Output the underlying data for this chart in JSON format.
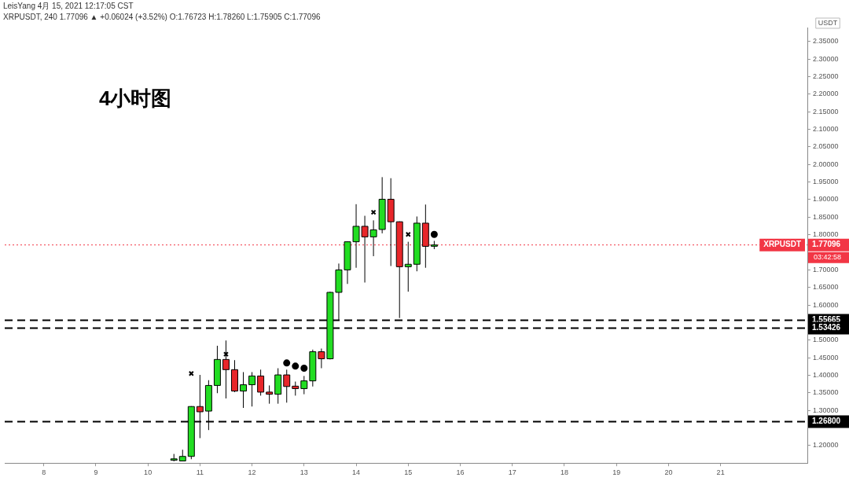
{
  "chart_data": {
    "type": "candlestick",
    "title": "4小时图",
    "subtitle": [
      "LeisYang 4月 15, 2021 12:17:05 CST",
      "XRPUSDT, 240 1.77096 ▲ +0.06024 (+3.52%) O:1.76723 H:1.78260 L:1.75905 C:1.77096"
    ],
    "ylabel": "USDT",
    "x": [
      "2021-04-10T12:00",
      "2021-04-10T16:00",
      "2021-04-10T20:00",
      "2021-04-11T00:00",
      "2021-04-11T04:00",
      "2021-04-11T08:00",
      "2021-04-11T12:00",
      "2021-04-11T16:00",
      "2021-04-11T20:00",
      "2021-04-12T00:00",
      "2021-04-12T04:00",
      "2021-04-12T08:00",
      "2021-04-12T12:00",
      "2021-04-12T16:00",
      "2021-04-12T20:00",
      "2021-04-13T00:00",
      "2021-04-13T04:00",
      "2021-04-13T08:00",
      "2021-04-13T12:00",
      "2021-04-13T16:00",
      "2021-04-13T20:00",
      "2021-04-14T00:00",
      "2021-04-14T04:00",
      "2021-04-14T08:00",
      "2021-04-14T12:00",
      "2021-04-14T16:00",
      "2021-04-14T20:00",
      "2021-04-15T00:00",
      "2021-04-15T04:00",
      "2021-04-15T08:00",
      "2021-04-15T12:00"
    ],
    "ohlc": [
      [
        1.158,
        1.176,
        1.155,
        1.162
      ],
      [
        1.156,
        1.188,
        1.155,
        1.169
      ],
      [
        1.169,
        1.312,
        1.161,
        1.311
      ],
      [
        1.311,
        1.401,
        1.221,
        1.296
      ],
      [
        1.298,
        1.386,
        1.244,
        1.371
      ],
      [
        1.371,
        1.484,
        1.349,
        1.445
      ],
      [
        1.445,
        1.499,
        1.334,
        1.416
      ],
      [
        1.416,
        1.443,
        1.352,
        1.355
      ],
      [
        1.355,
        1.409,
        1.307,
        1.373
      ],
      [
        1.373,
        1.409,
        1.311,
        1.398
      ],
      [
        1.398,
        1.416,
        1.342,
        1.352
      ],
      [
        1.352,
        1.371,
        1.319,
        1.346
      ],
      [
        1.346,
        1.42,
        1.319,
        1.401
      ],
      [
        1.401,
        1.416,
        1.322,
        1.368
      ],
      [
        1.369,
        1.382,
        1.342,
        1.362
      ],
      [
        1.362,
        1.398,
        1.346,
        1.384
      ],
      [
        1.384,
        1.473,
        1.368,
        1.467
      ],
      [
        1.467,
        1.476,
        1.42,
        1.447
      ],
      [
        1.447,
        1.638,
        1.445,
        1.636
      ],
      [
        1.636,
        1.718,
        1.556,
        1.7
      ],
      [
        1.7,
        1.781,
        1.66,
        1.78
      ],
      [
        1.78,
        1.887,
        1.706,
        1.824
      ],
      [
        1.824,
        1.854,
        1.664,
        1.794
      ],
      [
        1.794,
        1.841,
        1.739,
        1.814
      ],
      [
        1.815,
        1.964,
        1.804,
        1.901
      ],
      [
        1.901,
        1.961,
        1.711,
        1.837
      ],
      [
        1.837,
        1.838,
        1.563,
        1.709
      ],
      [
        1.709,
        1.78,
        1.638,
        1.716
      ],
      [
        1.716,
        1.852,
        1.696,
        1.833
      ],
      [
        1.833,
        1.886,
        1.706,
        1.767
      ],
      [
        1.76723,
        1.7826,
        1.75905,
        1.77096
      ]
    ],
    "colors": [
      "#22dd22",
      "#22dd22",
      "#22dd22",
      "#e8262a",
      "#22dd22",
      "#22dd22",
      "#e8262a",
      "#e8262a",
      "#22dd22",
      "#22dd22",
      "#e8262a",
      "#e8262a",
      "#22dd22",
      "#e8262a",
      "#e8262a",
      "#22dd22",
      "#22dd22",
      "#e8262a",
      "#22dd22",
      "#22dd22",
      "#22dd22",
      "#22dd22",
      "#e8262a",
      "#22dd22",
      "#22dd22",
      "#e8262a",
      "#e8262a",
      "#22dd22",
      "#22dd22",
      "#e8262a",
      "#22dd22"
    ],
    "series": [
      {
        "type": "scatter",
        "marker": "cross",
        "color": "#000000",
        "x": [
          "2021-04-10T20:00",
          "2021-04-11T12:00",
          "2021-04-14T08:00",
          "2021-04-15T00:00"
        ],
        "values": [
          1.405,
          1.46,
          1.864,
          1.801
        ]
      },
      {
        "type": "scatter",
        "marker": "circle",
        "color": "#000000",
        "x": [
          "2021-04-12T16:00",
          "2021-04-12T20:00",
          "2021-04-13T00:00",
          "2021-04-15T12:00"
        ],
        "values": [
          1.435,
          1.426,
          1.42,
          1.801
        ]
      }
    ],
    "xlim": [
      "2021-04-07T06:00",
      "2021-04-22T16:00"
    ],
    "xticks": [
      {
        "value": "2021-04-08",
        "label": "8"
      },
      {
        "value": "2021-04-09",
        "label": "9"
      },
      {
        "value": "2021-04-10",
        "label": "10"
      },
      {
        "value": "2021-04-11",
        "label": "11"
      },
      {
        "value": "2021-04-12",
        "label": "12"
      },
      {
        "value": "2021-04-13",
        "label": "13"
      },
      {
        "value": "2021-04-14",
        "label": "14"
      },
      {
        "value": "2021-04-15",
        "label": "15"
      },
      {
        "value": "2021-04-16",
        "label": "16"
      },
      {
        "value": "2021-04-17",
        "label": "17"
      },
      {
        "value": "2021-04-18",
        "label": "18"
      },
      {
        "value": "2021-04-19",
        "label": "19"
      },
      {
        "value": "2021-04-20",
        "label": "20"
      },
      {
        "value": "2021-04-21",
        "label": "21"
      }
    ],
    "ylim": [
      1.15,
      2.39
    ],
    "yticks": [
      {
        "value": 1.2,
        "label": "1.20000"
      },
      {
        "value": 1.3,
        "label": "1.30000"
      },
      {
        "value": 1.35,
        "label": "1.35000"
      },
      {
        "value": 1.4,
        "label": "1.40000"
      },
      {
        "value": 1.45,
        "label": "1.45000"
      },
      {
        "value": 1.5,
        "label": "1.50000"
      },
      {
        "value": 1.6,
        "label": "1.60000"
      },
      {
        "value": 1.65,
        "label": "1.65000"
      },
      {
        "value": 1.7,
        "label": "1.70000"
      },
      {
        "value": 1.8,
        "label": "1.80000"
      },
      {
        "value": 1.85,
        "label": "1.85000"
      },
      {
        "value": 1.9,
        "label": "1.90000"
      },
      {
        "value": 1.95,
        "label": "1.95000"
      },
      {
        "value": 2.0,
        "label": "2.00000"
      },
      {
        "value": 2.05,
        "label": "2.05000"
      },
      {
        "value": 2.1,
        "label": "2.10000"
      },
      {
        "value": 2.15,
        "label": "2.15000"
      },
      {
        "value": 2.2,
        "label": "2.20000"
      },
      {
        "value": 2.25,
        "label": "2.25000"
      },
      {
        "value": 2.3,
        "label": "2.30000"
      },
      {
        "value": 2.35,
        "label": "2.35000"
      }
    ],
    "ref_lines": [
      {
        "axis": "y",
        "value": 1.55665,
        "label": "1.55665",
        "color": "#000000",
        "line_style": "dashed"
      },
      {
        "axis": "y",
        "value": 1.53426,
        "label": "1.53426",
        "color": "#000000",
        "line_style": "dashed"
      },
      {
        "axis": "y",
        "value": 1.268,
        "label": "1.26800",
        "color": "#000000",
        "line_style": "dashed"
      },
      {
        "axis": "y",
        "value": 1.77096,
        "label": "1.77096",
        "color": "#f23645",
        "line_style": "dotted"
      }
    ],
    "annotations": [
      "XRPUSDT",
      "03:42:58"
    ],
    "grid": false,
    "legend": false
  }
}
